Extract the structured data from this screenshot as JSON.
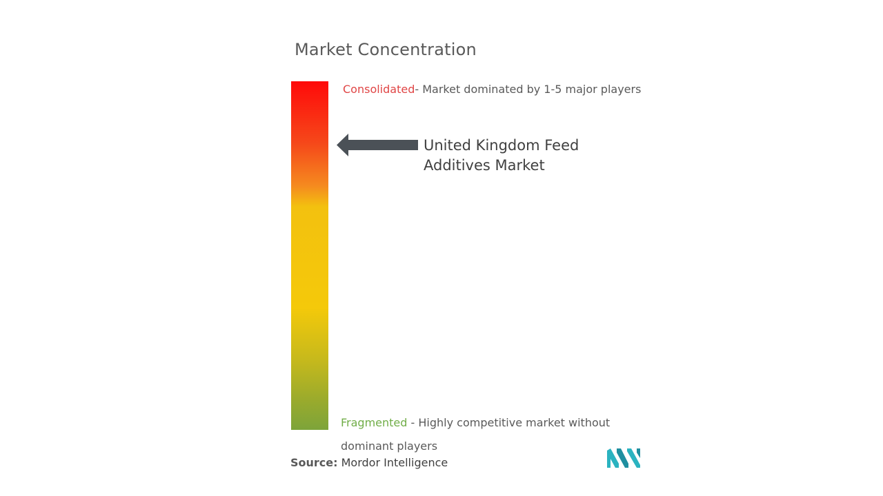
{
  "title": "Market Concentration",
  "scale": {
    "top_label": "Consolidated",
    "top_description": "- Market dominated by 1-5 major players",
    "bottom_label": "Fragmented",
    "bottom_description": " - Highly competitive market without dominant players",
    "top_color": "#ff0a0a",
    "bottom_color": "#7da43a",
    "marker_level": 0.82
  },
  "market": {
    "name": "United Kingdom Feed Additives Market"
  },
  "source": {
    "label": "Source:",
    "value": "Mordor Intelligence"
  },
  "logo": {
    "icon": "mordor-intelligence-logo-icon",
    "color": "#2bb3c0"
  }
}
